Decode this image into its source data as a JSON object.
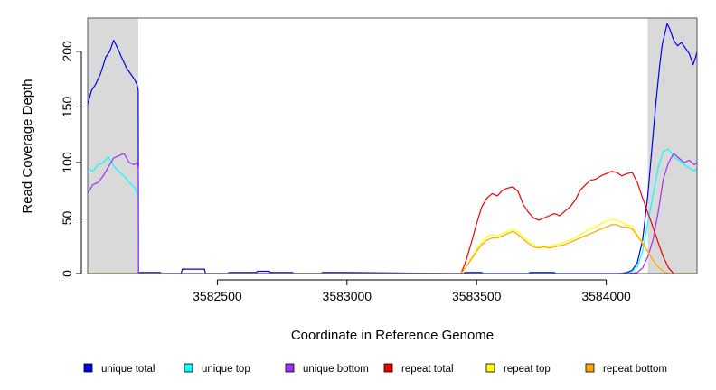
{
  "chart_data": {
    "type": "line",
    "title": "",
    "xlabel": "Coordinate in Reference Genome",
    "ylabel": "Read Coverage Depth",
    "xlim": [
      3582000,
      3584350
    ],
    "ylim": [
      0,
      230
    ],
    "x_ticks": [
      3582500,
      3583000,
      3583500,
      3584000
    ],
    "y_ticks": [
      0,
      50,
      100,
      150,
      200
    ],
    "grid": false,
    "legend_position": "bottom",
    "shaded_regions": [
      {
        "from": 3582000,
        "to": 3582195,
        "color": "#d9d9d9"
      },
      {
        "from": 3584160,
        "to": 3584350,
        "color": "#d9d9d9"
      }
    ],
    "series": [
      {
        "name": "unique total",
        "color": "#0000ee",
        "x": [
          3582000,
          3582015,
          3582030,
          3582050,
          3582070,
          3582085,
          3582100,
          3582115,
          3582130,
          3582150,
          3582165,
          3582180,
          3582190,
          3582195,
          3582196,
          3582280,
          3582285,
          3582360,
          3582365,
          3582450,
          3582455,
          3582540,
          3582545,
          3582650,
          3582655,
          3582700,
          3582705,
          3582790,
          3582795,
          3582900,
          3582905,
          3583000,
          3583400,
          3583450,
          3583455,
          3583520,
          3583525,
          3583700,
          3583705,
          3583800,
          3583805,
          3584050,
          3584080,
          3584100,
          3584120,
          3584140,
          3584160,
          3584175,
          3584190,
          3584205,
          3584215,
          3584225,
          3584235,
          3584245,
          3584260,
          3584275,
          3584290,
          3584305,
          3584320,
          3584335,
          3584345,
          3584350
        ],
        "values": [
          152,
          165,
          170,
          180,
          195,
          200,
          210,
          203,
          195,
          185,
          180,
          175,
          170,
          165,
          1,
          1,
          0,
          0,
          4,
          4,
          0,
          0,
          1,
          1,
          2,
          2,
          1,
          1,
          0,
          0,
          1,
          1,
          0,
          0,
          1,
          1,
          0,
          0,
          1,
          1,
          0,
          0,
          1,
          3,
          10,
          30,
          70,
          110,
          150,
          185,
          205,
          215,
          225,
          220,
          210,
          205,
          208,
          203,
          198,
          188,
          195,
          200
        ]
      },
      {
        "name": "unique top",
        "color": "#00ffff",
        "x": [
          3582000,
          3582020,
          3582040,
          3582060,
          3582080,
          3582100,
          3582120,
          3582140,
          3582160,
          3582180,
          3582190,
          3582195,
          3582196,
          3584080,
          3584100,
          3584120,
          3584140,
          3584160,
          3584180,
          3584200,
          3584220,
          3584240,
          3584260,
          3584280,
          3584300,
          3584320,
          3584340,
          3584350
        ],
        "values": [
          95,
          92,
          98,
          100,
          105,
          97,
          92,
          88,
          82,
          78,
          72,
          70,
          0,
          0,
          2,
          6,
          20,
          45,
          70,
          95,
          110,
          112,
          105,
          102,
          98,
          95,
          92,
          95
        ]
      },
      {
        "name": "unique bottom",
        "color": "#a030f0",
        "x": [
          3582000,
          3582020,
          3582040,
          3582060,
          3582080,
          3582100,
          3582120,
          3582140,
          3582160,
          3582180,
          3582190,
          3582195,
          3582196,
          3584080,
          3584120,
          3584140,
          3584160,
          3584180,
          3584200,
          3584220,
          3584240,
          3584260,
          3584280,
          3584300,
          3584320,
          3584340,
          3584350
        ],
        "values": [
          72,
          80,
          82,
          88,
          96,
          104,
          106,
          108,
          100,
          98,
          100,
          95,
          0,
          0,
          1,
          5,
          15,
          30,
          55,
          85,
          100,
          108,
          104,
          100,
          102,
          98,
          100
        ]
      },
      {
        "name": "repeat total",
        "color": "#ee0000",
        "x": [
          3583440,
          3583460,
          3583480,
          3583500,
          3583520,
          3583540,
          3583560,
          3583580,
          3583600,
          3583620,
          3583640,
          3583660,
          3583680,
          3583700,
          3583720,
          3583740,
          3583760,
          3583780,
          3583800,
          3583820,
          3583840,
          3583860,
          3583880,
          3583900,
          3583920,
          3583940,
          3583960,
          3583980,
          3584000,
          3584020,
          3584040,
          3584060,
          3584080,
          3584100,
          3584120,
          3584140,
          3584160,
          3584180,
          3584200,
          3584220,
          3584240,
          3584260
        ],
        "values": [
          0,
          12,
          28,
          45,
          60,
          68,
          72,
          70,
          75,
          77,
          78,
          74,
          62,
          55,
          50,
          48,
          50,
          52,
          54,
          52,
          56,
          60,
          66,
          75,
          80,
          84,
          85,
          88,
          90,
          92,
          91,
          88,
          90,
          91,
          82,
          68,
          55,
          42,
          28,
          15,
          5,
          0
        ]
      },
      {
        "name": "repeat top",
        "color": "#ffff00",
        "x": [
          3583440,
          3583460,
          3583480,
          3583500,
          3583520,
          3583540,
          3583560,
          3583580,
          3583600,
          3583620,
          3583640,
          3583660,
          3583680,
          3583700,
          3583720,
          3583740,
          3583760,
          3583780,
          3583800,
          3583820,
          3583840,
          3583860,
          3583880,
          3583900,
          3583920,
          3583940,
          3583960,
          3583980,
          3584000,
          3584020,
          3584040,
          3584060,
          3584080,
          3584100,
          3584120,
          3584140,
          3584160,
          3584180,
          3584200,
          3584220,
          3584240
        ],
        "values": [
          0,
          6,
          14,
          22,
          28,
          33,
          35,
          34,
          36,
          38,
          40,
          37,
          33,
          29,
          26,
          24,
          25,
          24,
          26,
          27,
          28,
          30,
          32,
          35,
          38,
          40,
          42,
          45,
          47,
          49,
          48,
          46,
          44,
          42,
          35,
          28,
          20,
          12,
          6,
          2,
          0
        ]
      },
      {
        "name": "repeat bottom",
        "color": "#ffa500",
        "x": [
          3582000,
          3583440,
          3583460,
          3583480,
          3583500,
          3583520,
          3583540,
          3583560,
          3583580,
          3583600,
          3583620,
          3583640,
          3583660,
          3583680,
          3583700,
          3583720,
          3583740,
          3583760,
          3583780,
          3583800,
          3583820,
          3583840,
          3583860,
          3583880,
          3583900,
          3583920,
          3583940,
          3583960,
          3583980,
          3584000,
          3584020,
          3584040,
          3584060,
          3584080,
          3584100,
          3584120,
          3584140,
          3584160,
          3584180,
          3584200,
          3584220,
          3584240,
          3584350
        ],
        "values": [
          0,
          0,
          6,
          13,
          20,
          26,
          30,
          32,
          32,
          34,
          36,
          38,
          35,
          31,
          27,
          24,
          23,
          24,
          23,
          24,
          25,
          26,
          28,
          30,
          32,
          34,
          36,
          38,
          40,
          42,
          44,
          44,
          42,
          42,
          40,
          34,
          27,
          20,
          12,
          6,
          2,
          0,
          0
        ]
      }
    ]
  }
}
